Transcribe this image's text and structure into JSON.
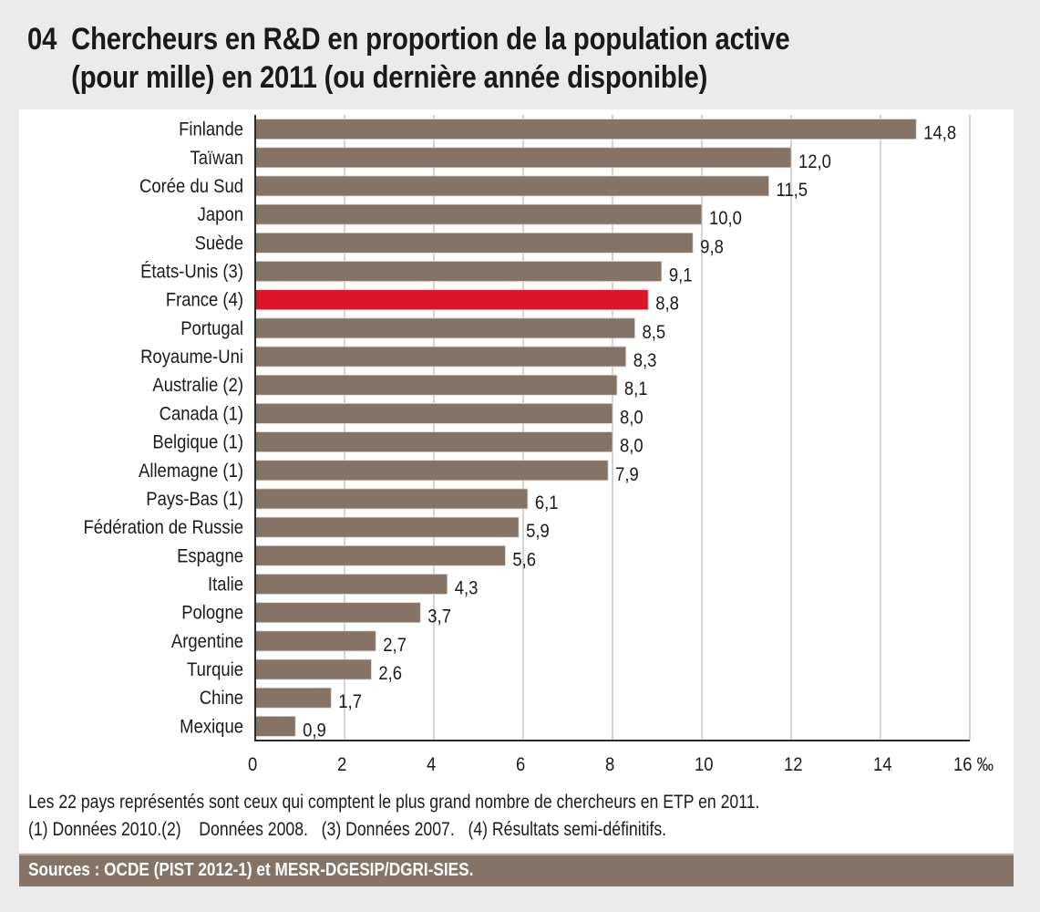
{
  "header": {
    "number": "04",
    "title_line1": "Chercheurs en R&D en proportion de la population active",
    "title_line2": "(pour mille) en 2011 (ou dernière année disponible)"
  },
  "chart_data": {
    "type": "bar",
    "orientation": "horizontal",
    "title": "Chercheurs en R&D en proportion de la population active (pour mille) en 2011 (ou dernière année disponible)",
    "xlabel": "",
    "ylabel": "",
    "unit": "‰",
    "xlim": [
      0,
      16
    ],
    "xticks": [
      0,
      2,
      4,
      6,
      8,
      10,
      12,
      14,
      16
    ],
    "xtick_labels": [
      "0",
      "2",
      "4",
      "6",
      "8",
      "10",
      "12",
      "14",
      "16 ‰"
    ],
    "grid": "vertical",
    "categories": [
      "Finlande",
      "Taïwan",
      "Corée du Sud",
      "Japon",
      "Suède",
      "États-Unis (3)",
      "France (4)",
      "Portugal",
      "Royaume-Uni",
      "Australie (2)",
      "Canada (1)",
      "Belgique (1)",
      "Allemagne (1)",
      "Pays-Bas (1)",
      "Fédération de Russie",
      "Espagne",
      "Italie",
      "Pologne",
      "Argentine",
      "Turquie",
      "Chine",
      "Mexique"
    ],
    "values": [
      14.8,
      12.0,
      11.5,
      10.0,
      9.8,
      9.1,
      8.8,
      8.5,
      8.3,
      8.1,
      8.0,
      8.0,
      7.9,
      6.1,
      5.9,
      5.6,
      4.3,
      3.7,
      2.7,
      2.6,
      1.7,
      0.9
    ],
    "value_labels": [
      "14,8",
      "12,0",
      "11,5",
      "10,0",
      "9,8",
      "9,1",
      "8,8",
      "8,5",
      "8,3",
      "8,1",
      "8,0",
      "8,0",
      "7,9",
      "6,1",
      "5,9",
      "5,6",
      "4,3",
      "3,7",
      "2,7",
      "2,6",
      "1,7",
      "0,9"
    ],
    "highlight": "France (4)",
    "colors": {
      "bar": "#857466",
      "highlight": "#e01427",
      "grid": "#b8b8b8",
      "axis": "#2b2b2b"
    }
  },
  "notes": {
    "line1": "Les 22 pays représentés sont ceux qui comptent le plus grand nombre de chercheurs en ETP en 2011.",
    "line2": "(1) Données 2010.(2)    Données 2008.   (3) Données 2007.   (4) Résultats semi-définitifs."
  },
  "sources": "Sources : OCDE (PIST 2012-1) et MESR-DGESIP/DGRI-SIES."
}
